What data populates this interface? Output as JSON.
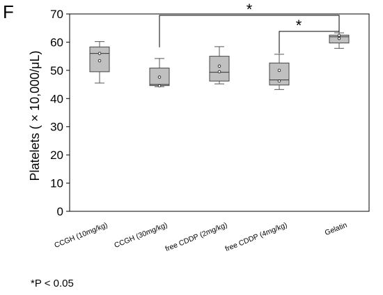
{
  "panel_label": "F",
  "footnote": "*P < 0.05",
  "chart_data": {
    "type": "box",
    "title": "",
    "xlabel": "",
    "ylabel": "Platelets ( × 10,000/μL)",
    "ylim": [
      0,
      70
    ],
    "yticks": [
      0,
      10,
      20,
      30,
      40,
      50,
      60,
      70
    ],
    "grid": false,
    "legend": "none",
    "box_color": "#c0c0c0",
    "categories": [
      "CCGH (10mg/kg)",
      "CCGH (30mg/kg)",
      "free CDDP (2mg/kg)",
      "free CDDP (4mg/kg)",
      "Gelatin"
    ],
    "boxes": [
      {
        "category": "CCGH (10mg/kg)",
        "whisker_low": 45.5,
        "q1": 49.5,
        "median": 56.0,
        "q3": 58.3,
        "whisker_high": 60.2,
        "points": [
          56.0,
          53.4
        ]
      },
      {
        "category": "CCGH (30mg/kg)",
        "whisker_low": 44.2,
        "q1": 44.6,
        "median": 45.0,
        "q3": 50.8,
        "whisker_high": 54.2,
        "points": [
          47.6,
          44.5
        ]
      },
      {
        "category": "free CDDP (2mg/kg)",
        "whisker_low": 45.2,
        "q1": 46.2,
        "median": 49.3,
        "q3": 55.0,
        "whisker_high": 58.4,
        "points": [
          51.5,
          49.5
        ]
      },
      {
        "category": "free CDDP (4mg/kg)",
        "whisker_low": 43.2,
        "q1": 44.8,
        "median": 46.6,
        "q3": 52.6,
        "whisker_high": 55.7,
        "points": [
          50.0,
          46.2
        ]
      },
      {
        "category": "Gelatin",
        "whisker_low": 57.8,
        "q1": 59.7,
        "median": 61.9,
        "q3": 62.5,
        "whisker_high": 63.3,
        "points": [
          61.3,
          62.4
        ]
      }
    ],
    "significance": [
      {
        "from": "CCGH (30mg/kg)",
        "to": "Gelatin",
        "label": "*"
      },
      {
        "from": "free CDDP (4mg/kg)",
        "to": "Gelatin",
        "label": "*"
      }
    ]
  }
}
